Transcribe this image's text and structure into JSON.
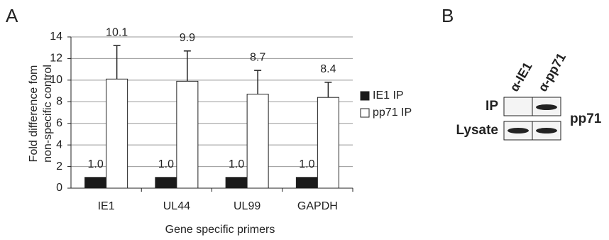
{
  "chart_data": {
    "type": "bar",
    "panel_label": "A",
    "ylabel": [
      "Fold difference fom",
      "non-specific control"
    ],
    "xlabel": "Gene specific primers",
    "categories": [
      "IE1",
      "UL44",
      "UL99",
      "GAPDH"
    ],
    "series": [
      {
        "name": "IE1 IP",
        "color": "#1a1a1a",
        "values": [
          1.0,
          1.0,
          1.0,
          1.0
        ],
        "value_labels": [
          "1.0",
          "1.0",
          "1.0",
          "1.0"
        ]
      },
      {
        "name": "pp71 IP",
        "color": "#ffffff",
        "values": [
          10.1,
          9.9,
          8.7,
          8.4
        ],
        "errors": [
          3.1,
          2.8,
          2.2,
          1.4
        ]
      }
    ],
    "ylim": [
      0,
      14
    ],
    "yticks": [
      0,
      2,
      4,
      6,
      8,
      10,
      12,
      14
    ],
    "grid": true,
    "legend": "right"
  },
  "blot": {
    "panel_label": "B",
    "lanes": [
      "α-IE1",
      "α-pp71"
    ],
    "rows": [
      "IP",
      "Lysate"
    ],
    "protein": "pp71"
  }
}
